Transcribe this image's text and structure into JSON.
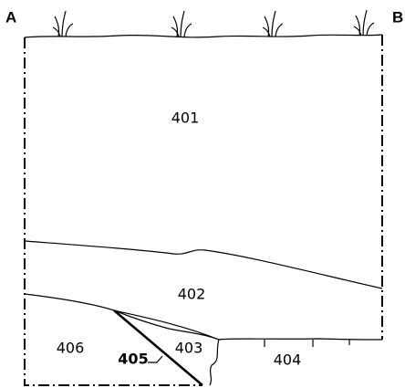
{
  "corners": {
    "left": "A",
    "right": "B"
  },
  "regions": [
    {
      "label": "401"
    },
    {
      "label": "402"
    },
    {
      "label": "403"
    },
    {
      "label": "404"
    },
    {
      "label": "405"
    },
    {
      "label": "406"
    }
  ]
}
